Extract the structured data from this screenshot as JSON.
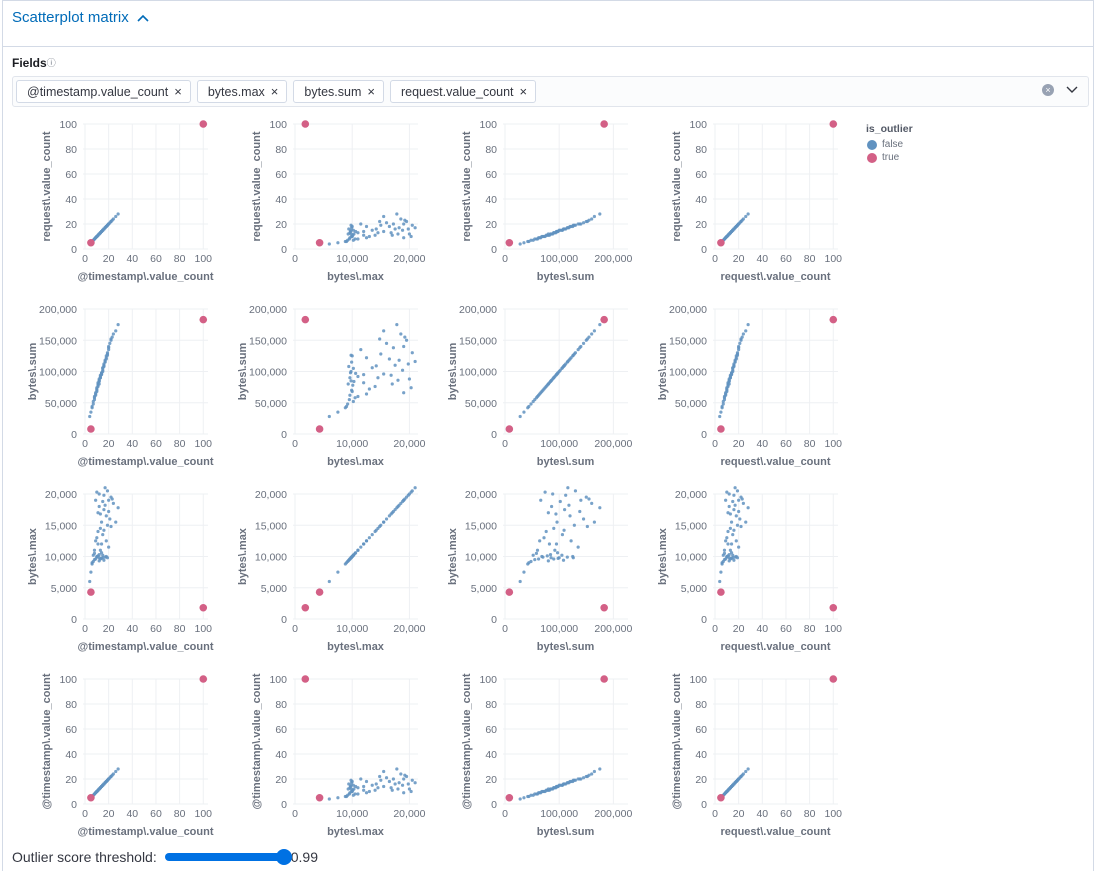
{
  "header": {
    "title": "Scatterplot matrix",
    "toggle_icon": "chevron-up-icon"
  },
  "fields": {
    "label": "Fields",
    "help_icon": "question-circle-icon",
    "selected": [
      "@timestamp.value_count",
      "bytes.max",
      "bytes.sum",
      "request.value_count"
    ]
  },
  "legend": {
    "title": "is_outlier",
    "items": [
      {
        "label": "false",
        "color": "#6092c0"
      },
      {
        "label": "true",
        "color": "#d36086"
      }
    ]
  },
  "threshold": {
    "label": "Outlier score threshold:",
    "value": 0.99,
    "display": "0.99"
  },
  "chart_data": {
    "type": "scatter",
    "grid": true,
    "legend_position": "right",
    "rows": [
      "R",
      "S",
      "M",
      "T"
    ],
    "columns": [
      "T",
      "M",
      "S",
      "R"
    ],
    "variables": {
      "T": {
        "label": "@timestamp\\.value_count",
        "xlim": [
          0,
          104
        ],
        "ylim": [
          0,
          100
        ],
        "xticks": [
          0,
          20,
          40,
          60,
          80,
          100
        ],
        "xtick_labels": [
          "0",
          "20",
          "40",
          "60",
          "80",
          "100"
        ],
        "yticks": [
          0,
          20,
          40,
          60,
          80,
          100
        ],
        "ytick_labels": [
          "0",
          "20",
          "40",
          "60",
          "80",
          "100"
        ]
      },
      "M": {
        "label": "bytes\\.max",
        "xlim": [
          0,
          21500
        ],
        "ylim": [
          0,
          20000
        ],
        "xticks": [
          0,
          10000,
          20000
        ],
        "xtick_labels": [
          "0",
          "10,000",
          "20,000"
        ],
        "yticks": [
          0,
          5000,
          10000,
          15000,
          20000
        ],
        "ytick_labels": [
          "0",
          "5,000",
          "10,000",
          "15,000",
          "20,000"
        ]
      },
      "S": {
        "label": "bytes\\.sum",
        "xlim": [
          0,
          227000
        ],
        "ylim": [
          0,
          200000
        ],
        "xticks": [
          0,
          100000,
          200000
        ],
        "xtick_labels": [
          "0",
          "100,000",
          "200,000"
        ],
        "yticks": [
          0,
          50000,
          100000,
          150000,
          200000
        ],
        "ytick_labels": [
          "0",
          "50,000",
          "100,000",
          "150,000",
          "200,000"
        ]
      },
      "R": {
        "label": "request\\.value_count",
        "xlim": [
          0,
          104
        ],
        "ylim": [
          0,
          100
        ],
        "xticks": [
          0,
          20,
          40,
          60,
          80,
          100
        ],
        "xtick_labels": [
          "0",
          "20",
          "40",
          "60",
          "80",
          "100"
        ],
        "yticks": [
          0,
          20,
          40,
          60,
          80,
          100
        ],
        "ytick_labels": [
          "0",
          "20",
          "40",
          "60",
          "80",
          "100"
        ]
      }
    },
    "record_fields": [
      "T",
      "M",
      "S",
      "R",
      "is_outlier"
    ],
    "records": [
      [
        12,
        9800,
        85000,
        12,
        false
      ],
      [
        15,
        10200,
        105000,
        15,
        false
      ],
      [
        8,
        9500,
        55000,
        8,
        false
      ],
      [
        18,
        16500,
        120000,
        18,
        false
      ],
      [
        10,
        9900,
        70000,
        10,
        false
      ],
      [
        14,
        12000,
        95000,
        14,
        false
      ],
      [
        20,
        19000,
        140000,
        20,
        false
      ],
      [
        6,
        8800,
        42000,
        6,
        false
      ],
      [
        16,
        17500,
        110000,
        16,
        false
      ],
      [
        11,
        10100,
        78000,
        11,
        false
      ],
      [
        13,
        14500,
        90000,
        13,
        false
      ],
      [
        9,
        9600,
        62000,
        9,
        false
      ],
      [
        17,
        18200,
        118000,
        17,
        false
      ],
      [
        22,
        19500,
        150000,
        22,
        false
      ],
      [
        7,
        9200,
        48000,
        7,
        false
      ],
      [
        19,
        15000,
        128000,
        19,
        false
      ],
      [
        12,
        20000,
        88000,
        12,
        false
      ],
      [
        14,
        9700,
        98000,
        14,
        false
      ],
      [
        10,
        13000,
        72000,
        10,
        false
      ],
      [
        15,
        18800,
        102000,
        15,
        false
      ],
      [
        5,
        7500,
        35000,
        5,
        false
      ],
      [
        18,
        10000,
        125000,
        18,
        false
      ],
      [
        21,
        16000,
        145000,
        21,
        false
      ],
      [
        13,
        11000,
        92000,
        13,
        false
      ],
      [
        16,
        19800,
        112000,
        16,
        false
      ],
      [
        8,
        10500,
        58000,
        8,
        false
      ],
      [
        11,
        17000,
        80000,
        11,
        false
      ],
      [
        24,
        18500,
        160000,
        24,
        false
      ],
      [
        9,
        12500,
        64000,
        9,
        false
      ],
      [
        17,
        9900,
        115000,
        17,
        false
      ],
      [
        14,
        15500,
        96000,
        14,
        false
      ],
      [
        12,
        10300,
        84000,
        12,
        false
      ],
      [
        20,
        11500,
        135000,
        20,
        false
      ],
      [
        6,
        9000,
        44000,
        6,
        false
      ],
      [
        15,
        13500,
        106000,
        15,
        false
      ],
      [
        19,
        20500,
        130000,
        19,
        false
      ],
      [
        10,
        10000,
        68000,
        10,
        false
      ],
      [
        13,
        16800,
        94000,
        13,
        false
      ],
      [
        16,
        9400,
        108000,
        16,
        false
      ],
      [
        11,
        14000,
        76000,
        11,
        false
      ],
      [
        28,
        17800,
        175000,
        28,
        false
      ],
      [
        4,
        6000,
        28000,
        4,
        false
      ],
      [
        18,
        12500,
        122000,
        18,
        false
      ],
      [
        12,
        18000,
        86000,
        12,
        false
      ],
      [
        15,
        9800,
        100000,
        15,
        false
      ],
      [
        7,
        10200,
        52000,
        7,
        false
      ],
      [
        22,
        14800,
        152000,
        22,
        false
      ],
      [
        9,
        19000,
        66000,
        9,
        false
      ],
      [
        14,
        10600,
        97000,
        14,
        false
      ],
      [
        17,
        21000,
        116000,
        17,
        false
      ],
      [
        26,
        15500,
        165000,
        26,
        false
      ],
      [
        13,
        9600,
        90000,
        13,
        false
      ],
      [
        11,
        12000,
        82000,
        11,
        false
      ],
      [
        20,
        17200,
        138000,
        20,
        false
      ],
      [
        8,
        11000,
        60000,
        8,
        false
      ],
      [
        16,
        14200,
        109000,
        16,
        false
      ],
      [
        19,
        9800,
        126000,
        19,
        false
      ],
      [
        10,
        20300,
        74000,
        10,
        false
      ],
      [
        23,
        19200,
        155000,
        23,
        false
      ],
      [
        12,
        9300,
        80000,
        12,
        false
      ],
      [
        100,
        1800,
        183000,
        100,
        true
      ],
      [
        5,
        4300,
        8000,
        5,
        true
      ]
    ]
  }
}
